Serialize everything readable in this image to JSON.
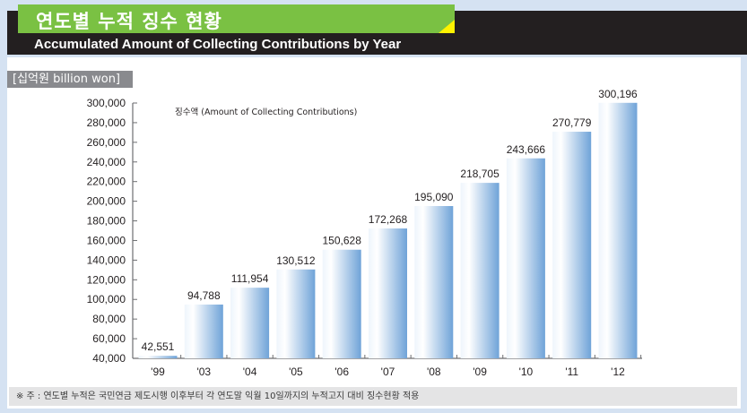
{
  "header": {
    "title_ko": "연도별 누적 징수 현황",
    "title_en": "Accumulated Amount of Collecting Contributions by Year",
    "colors": {
      "dark_bar": "#231f20",
      "green_bar": "#7ac143",
      "accent_triangle": "#fff200"
    }
  },
  "unit_label": "[십억원 billion won]",
  "footnote": "※ 주 : 연도별 누적은 국민연금 제도시행 이후부터 각 연도말 익월 10일까지의 누적고지 대비 징수현황 적용",
  "chart_data": {
    "type": "bar",
    "title": "Accumulated Amount of Collecting Contributions by Year",
    "legend": "징수액 (Amount of Collecting Contributions)",
    "legend_position": "top-left",
    "xlabel": "",
    "ylabel": "[십억원 billion won]",
    "categories": [
      "'99",
      "'03",
      "'04",
      "'05",
      "'06",
      "'07",
      "'08",
      "'09",
      "'10",
      "'11",
      "'12"
    ],
    "values": [
      42551,
      94788,
      111954,
      130512,
      150628,
      172268,
      195090,
      218705,
      243666,
      270779,
      300196
    ],
    "value_labels": [
      "42,551",
      "94,788",
      "111,954",
      "130,512",
      "150,628",
      "172,268",
      "195,090",
      "218,705",
      "243,666",
      "270,779",
      "300,196"
    ],
    "ylim": [
      40000,
      300000
    ],
    "yticks": [
      40000,
      60000,
      80000,
      100000,
      120000,
      140000,
      160000,
      180000,
      200000,
      220000,
      240000,
      260000,
      280000,
      300000
    ],
    "ytick_labels": [
      "40,000",
      "60,000",
      "80,000",
      "100,000",
      "120,000",
      "140,000",
      "160,000",
      "180,000",
      "200,000",
      "220,000",
      "240,000",
      "260,000",
      "280,000",
      "300,000"
    ],
    "grid": false,
    "bar_color_light": "#eef5fc",
    "bar_color_dark": "#6fa3d8"
  }
}
